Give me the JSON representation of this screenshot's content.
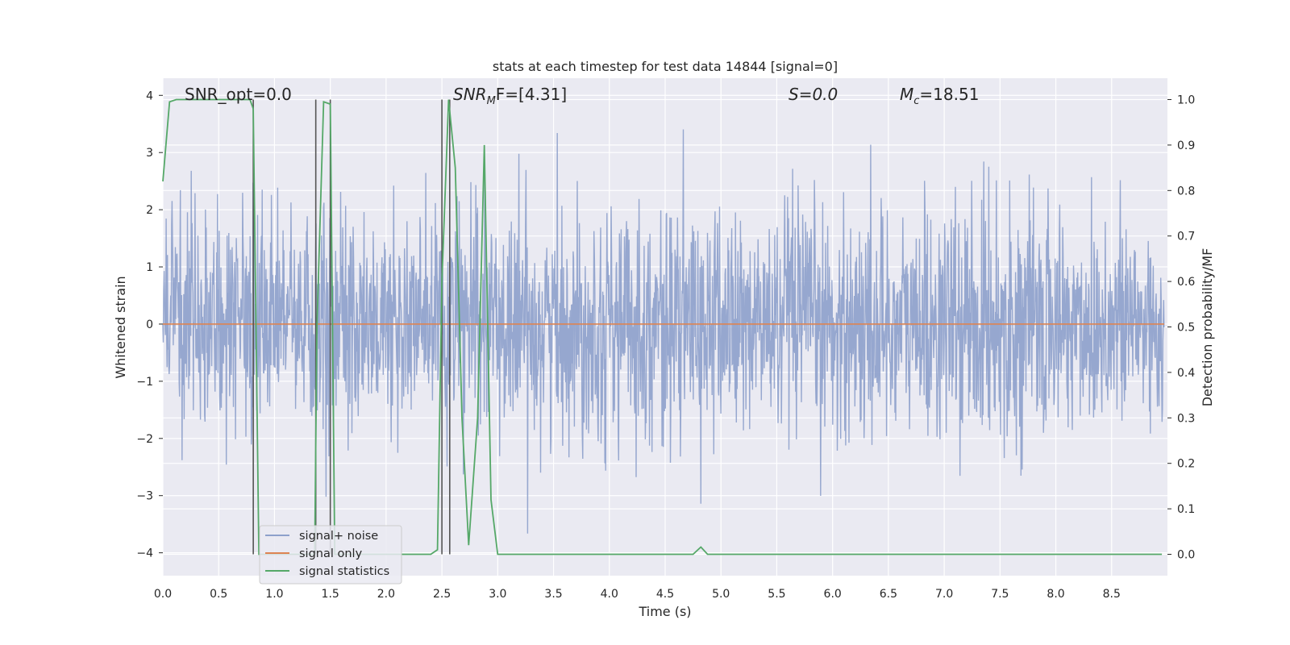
{
  "chart_data": {
    "type": "line",
    "title": "stats at each timestep for test data 14844 [signal=0]",
    "xlabel": "Time (s)",
    "ylabel_left": "Whitened strain",
    "ylabel_right": "Detection probability/MF",
    "xlim": [
      0.0,
      9.0
    ],
    "ylim_left": [
      -4.4,
      4.3
    ],
    "ylim_right": [
      -0.047,
      1.047
    ],
    "x_ticks": [
      0.0,
      0.5,
      1.0,
      1.5,
      2.0,
      2.5,
      3.0,
      3.5,
      4.0,
      4.5,
      5.0,
      5.5,
      6.0,
      6.5,
      7.0,
      7.5,
      8.0,
      8.5
    ],
    "x_tick_labels": [
      "0.0",
      "0.5",
      "1.0",
      "1.5",
      "2.0",
      "2.5",
      "3.0",
      "3.5",
      "4.0",
      "4.5",
      "5.0",
      "5.5",
      "6.0",
      "6.5",
      "7.0",
      "7.5",
      "8.0",
      "8.5"
    ],
    "y_left_ticks": [
      4,
      3,
      2,
      1,
      0,
      -1,
      -2,
      -3,
      -4
    ],
    "y_left_tick_labels": [
      "4",
      "3",
      "2",
      "1",
      "0",
      "−1",
      "−2",
      "−3",
      "−4"
    ],
    "y_right_ticks": [
      1.0,
      0.9,
      0.8,
      0.7,
      0.6,
      0.5,
      0.4,
      0.3,
      0.2,
      0.1,
      0.0
    ],
    "y_right_tick_labels": [
      "1.0",
      "0.9",
      "0.8",
      "0.7",
      "0.6",
      "0.5",
      "0.4",
      "0.3",
      "0.2",
      "0.1",
      "0.0"
    ],
    "grid": true,
    "legend_position": "lower-left",
    "legend": [
      "signal+ noise",
      "signal only",
      "signal statistics"
    ],
    "colors": {
      "signal_noise": "#8da0cb",
      "signal_only": "#dd8452",
      "signal_statistics": "#55a868",
      "vlines": "#555555",
      "background": "#eaeaf2",
      "grid": "#ffffff"
    },
    "annotations": {
      "snr_opt": "SNR_opt=0.0",
      "snr_mf_base": "SNR",
      "snr_mf_sub": "M",
      "snr_mf_rest": "F=[4.31]",
      "s_label": "S=0.0",
      "mc_base": "M",
      "mc_sub": "c",
      "mc_rest": "=18.51"
    },
    "series": [
      {
        "name": "signal+ noise",
        "axis": "left",
        "description_amplitude": 3.5
      },
      {
        "name": "signal only",
        "axis": "left",
        "x": [
          0.0,
          9.0
        ],
        "y": [
          0.0,
          0.0
        ]
      },
      {
        "name": "signal statistics",
        "axis": "right",
        "x": [
          0.0,
          0.06,
          0.12,
          0.3,
          0.6,
          0.78,
          0.81,
          0.86,
          1.0,
          1.2,
          1.36,
          1.38,
          1.44,
          1.5,
          1.54,
          1.62,
          1.8,
          2.0,
          2.2,
          2.4,
          2.46,
          2.5,
          2.56,
          2.62,
          2.68,
          2.74,
          2.82,
          2.88,
          2.94,
          3.0,
          3.2,
          3.5,
          4.0,
          4.5,
          4.75,
          4.82,
          4.88,
          5.0,
          6.0,
          7.0,
          8.0,
          8.95
        ],
        "y": [
          0.82,
          0.995,
          1.0,
          1.0,
          1.0,
          1.0,
          0.98,
          0.0,
          0.0,
          0.0,
          0.0,
          0.5,
          0.995,
          0.99,
          0.0,
          0.0,
          0.0,
          0.0,
          0.0,
          0.0,
          0.01,
          0.6,
          1.0,
          0.85,
          0.3,
          0.02,
          0.3,
          0.9,
          0.12,
          0.0,
          0.0,
          0.0,
          0.0,
          0.0,
          0.0,
          0.016,
          0.0,
          0.0,
          0.0,
          0.0,
          0.0,
          0.0
        ]
      }
    ],
    "vertical_lines_x": [
      0.81,
      1.37,
      1.5,
      2.5,
      2.57
    ]
  }
}
